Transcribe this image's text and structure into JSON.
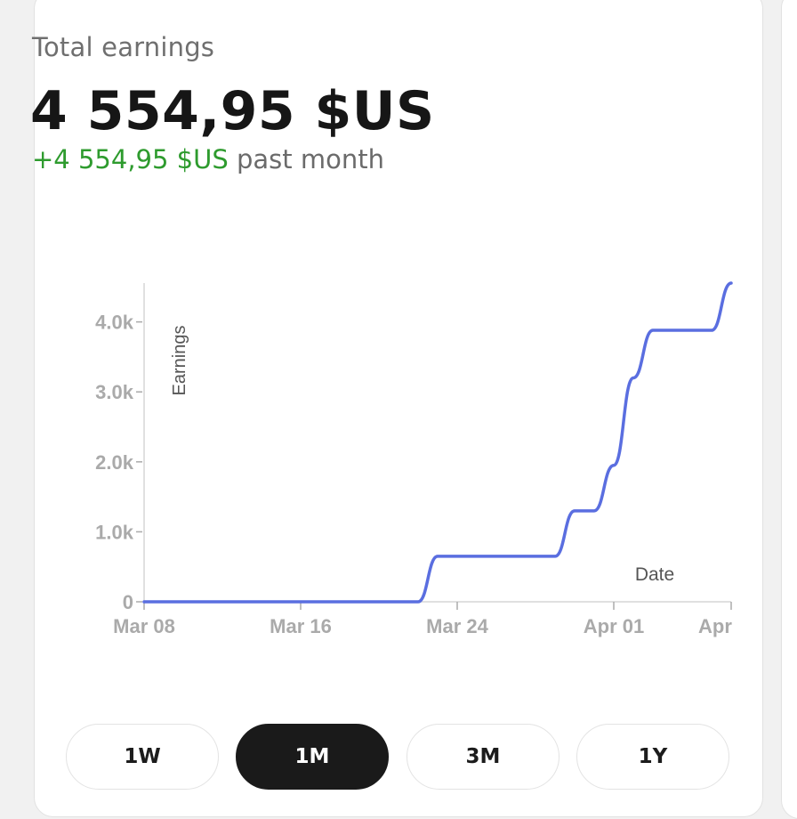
{
  "card": {
    "title": "Total earnings",
    "total": "4 554,95 $US",
    "change_amount": "+4 554,95 $US",
    "change_period": "past month"
  },
  "colors": {
    "line": "#5a6ee0",
    "positive": "#2e9b2e",
    "axis": "#aaaaaa",
    "active_button": "#1a1a1a"
  },
  "range_buttons": [
    {
      "label": "1W",
      "active": false
    },
    {
      "label": "1M",
      "active": true
    },
    {
      "label": "3M",
      "active": false
    },
    {
      "label": "1Y",
      "active": false
    }
  ],
  "chart_data": {
    "type": "line",
    "xlabel": "Date",
    "ylabel": "Earnings",
    "ylim": [
      0,
      4554.95
    ],
    "grid": false,
    "y_ticks": [
      {
        "value": 0,
        "label": "0"
      },
      {
        "value": 1000,
        "label": "1.0k"
      },
      {
        "value": 2000,
        "label": "2.0k"
      },
      {
        "value": 3000,
        "label": "3.0k"
      },
      {
        "value": 4000,
        "label": "4.0k"
      }
    ],
    "x_ticks": [
      {
        "date": "2024-03-08",
        "label": "Mar 08"
      },
      {
        "date": "2024-03-16",
        "label": "Mar 16"
      },
      {
        "date": "2024-03-24",
        "label": "Mar 24"
      },
      {
        "date": "2024-04-01",
        "label": "Apr 01"
      },
      {
        "date": "2024-04-07",
        "label": "Apr"
      }
    ],
    "x_range": [
      "2024-03-08",
      "2024-04-07"
    ],
    "series": [
      {
        "points": [
          {
            "date": "2024-03-08",
            "value": 0
          },
          {
            "date": "2024-03-22",
            "value": 0
          },
          {
            "date": "2024-03-23",
            "value": 650
          },
          {
            "date": "2024-03-29",
            "value": 650
          },
          {
            "date": "2024-03-30",
            "value": 1300
          },
          {
            "date": "2024-03-31",
            "value": 1300
          },
          {
            "date": "2024-04-01",
            "value": 1950
          },
          {
            "date": "2024-04-02",
            "value": 3200
          },
          {
            "date": "2024-04-03",
            "value": 3880
          },
          {
            "date": "2024-04-06",
            "value": 3880
          },
          {
            "date": "2024-04-07",
            "value": 4554.95
          }
        ]
      }
    ]
  }
}
